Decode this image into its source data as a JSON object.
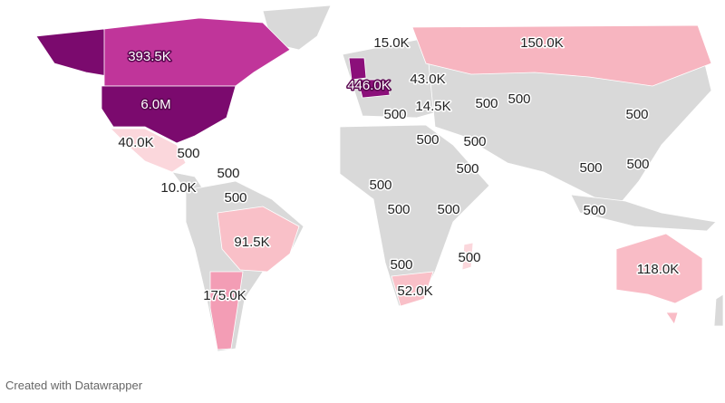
{
  "map": {
    "labels": [
      "393.5K",
      "15.0K",
      "150.0K",
      "446.0K",
      "43.0K",
      "6.0M",
      "500",
      "14.5K",
      "500",
      "500",
      "500",
      "40.0K",
      "500",
      "500",
      "500",
      "500",
      "500",
      "500",
      "500",
      "10.0K",
      "500",
      "500",
      "500",
      "500",
      "500",
      "91.5K",
      "500",
      "500",
      "118.0K",
      "52.0K",
      "175.0K"
    ],
    "footer": "Created with Datawrapper"
  }
}
